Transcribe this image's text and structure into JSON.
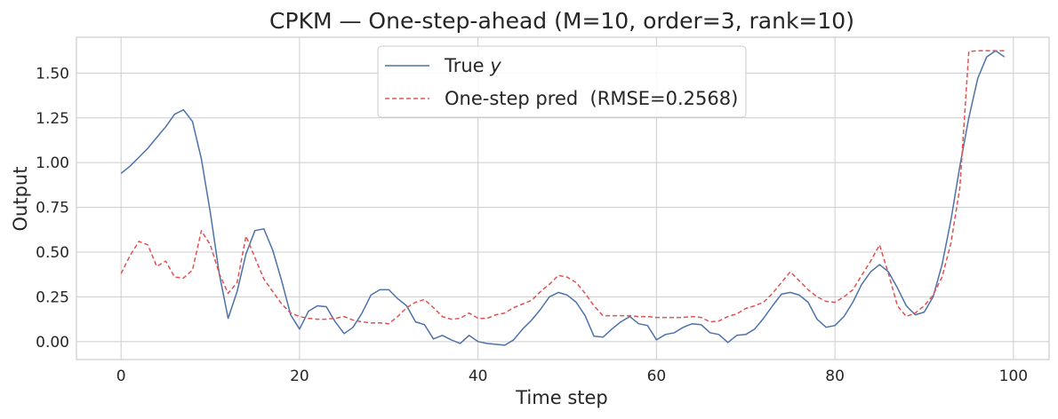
{
  "chart_data": {
    "type": "line",
    "title": "CPKM — One-step-ahead (M=10, order=3, rank=10)",
    "xlabel": "Time step",
    "ylabel": "Output",
    "xlim": [
      -5,
      104
    ],
    "ylim": [
      -0.1,
      1.7
    ],
    "xticks": [
      "0",
      "20",
      "40",
      "60",
      "80",
      "100"
    ],
    "yticks": [
      "0.00",
      "0.25",
      "0.50",
      "0.75",
      "1.00",
      "1.25",
      "1.50"
    ],
    "grid": true,
    "legend_position": "top-center",
    "series": [
      {
        "name": "True y",
        "legend_prefix": "True ",
        "legend_var": "y",
        "color": "#4c72a8",
        "style": "solid",
        "x": [
          0,
          1,
          2,
          3,
          4,
          5,
          6,
          7,
          8,
          9,
          10,
          11,
          12,
          13,
          14,
          15,
          16,
          17,
          18,
          19,
          20,
          21,
          22,
          23,
          24,
          25,
          26,
          27,
          28,
          29,
          30,
          31,
          32,
          33,
          34,
          35,
          36,
          37,
          38,
          39,
          40,
          41,
          42,
          43,
          44,
          45,
          46,
          47,
          48,
          49,
          50,
          51,
          52,
          53,
          54,
          55,
          56,
          57,
          58,
          59,
          60,
          61,
          62,
          63,
          64,
          65,
          66,
          67,
          68,
          69,
          70,
          71,
          72,
          73,
          74,
          75,
          76,
          77,
          78,
          79,
          80,
          81,
          82,
          83,
          84,
          85,
          86,
          87,
          88,
          89,
          90,
          91,
          92,
          93,
          94,
          95,
          96,
          97,
          98,
          99
        ],
        "values": [
          0.94,
          0.98,
          1.03,
          1.08,
          1.14,
          1.2,
          1.27,
          1.295,
          1.23,
          1.02,
          0.72,
          0.38,
          0.13,
          0.28,
          0.49,
          0.62,
          0.63,
          0.51,
          0.34,
          0.15,
          0.07,
          0.17,
          0.2,
          0.195,
          0.11,
          0.045,
          0.08,
          0.16,
          0.26,
          0.29,
          0.29,
          0.24,
          0.2,
          0.11,
          0.095,
          0.015,
          0.035,
          0.01,
          -0.01,
          0.035,
          0.0,
          -0.01,
          -0.015,
          -0.02,
          0.01,
          0.07,
          0.12,
          0.18,
          0.25,
          0.275,
          0.26,
          0.22,
          0.145,
          0.03,
          0.025,
          0.07,
          0.11,
          0.14,
          0.1,
          0.09,
          0.01,
          0.04,
          0.05,
          0.08,
          0.1,
          0.095,
          0.05,
          0.04,
          -0.005,
          0.035,
          0.04,
          0.07,
          0.13,
          0.2,
          0.265,
          0.275,
          0.26,
          0.22,
          0.125,
          0.08,
          0.09,
          0.14,
          0.22,
          0.32,
          0.39,
          0.43,
          0.39,
          0.3,
          0.2,
          0.15,
          0.165,
          0.25,
          0.43,
          0.68,
          0.98,
          1.25,
          1.47,
          1.59,
          1.625,
          1.59
        ]
      },
      {
        "name": "One-step pred  (RMSE=0.2568)",
        "legend_prefix": "One-step pred  (RMSE=0.2568)",
        "legend_var": "",
        "color": "#e05252",
        "style": "dashed",
        "x": [
          0,
          1,
          2,
          3,
          4,
          5,
          6,
          7,
          8,
          9,
          10,
          11,
          12,
          13,
          14,
          15,
          16,
          17,
          18,
          19,
          20,
          21,
          22,
          23,
          24,
          25,
          26,
          27,
          28,
          29,
          30,
          31,
          32,
          33,
          34,
          35,
          36,
          37,
          38,
          39,
          40,
          41,
          42,
          43,
          44,
          45,
          46,
          47,
          48,
          49,
          50,
          51,
          52,
          53,
          54,
          55,
          56,
          57,
          58,
          59,
          60,
          61,
          62,
          63,
          64,
          65,
          66,
          67,
          68,
          69,
          70,
          71,
          72,
          73,
          74,
          75,
          76,
          77,
          78,
          79,
          80,
          81,
          82,
          83,
          84,
          85,
          86,
          87,
          88,
          89,
          90,
          91,
          92,
          93,
          94,
          95,
          96,
          97,
          98,
          99
        ],
        "values": [
          0.38,
          0.48,
          0.56,
          0.54,
          0.42,
          0.45,
          0.36,
          0.355,
          0.4,
          0.62,
          0.54,
          0.38,
          0.27,
          0.33,
          0.59,
          0.47,
          0.35,
          0.28,
          0.21,
          0.16,
          0.14,
          0.13,
          0.125,
          0.125,
          0.13,
          0.14,
          0.12,
          0.11,
          0.105,
          0.105,
          0.1,
          0.14,
          0.19,
          0.22,
          0.235,
          0.19,
          0.14,
          0.125,
          0.13,
          0.16,
          0.13,
          0.13,
          0.15,
          0.16,
          0.19,
          0.21,
          0.23,
          0.28,
          0.32,
          0.37,
          0.36,
          0.33,
          0.27,
          0.2,
          0.145,
          0.145,
          0.145,
          0.145,
          0.14,
          0.14,
          0.135,
          0.135,
          0.135,
          0.135,
          0.14,
          0.135,
          0.11,
          0.115,
          0.14,
          0.155,
          0.185,
          0.2,
          0.22,
          0.27,
          0.33,
          0.39,
          0.34,
          0.29,
          0.25,
          0.225,
          0.22,
          0.25,
          0.29,
          0.37,
          0.45,
          0.54,
          0.38,
          0.2,
          0.14,
          0.16,
          0.2,
          0.26,
          0.36,
          0.55,
          0.86,
          1.62,
          1.625,
          1.625,
          1.625,
          1.625
        ]
      }
    ]
  }
}
